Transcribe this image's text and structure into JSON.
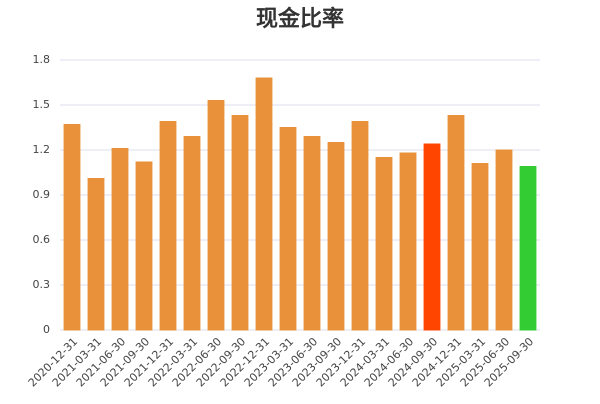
{
  "chart_data": {
    "type": "bar",
    "title": "现金比率",
    "categories": [
      "2020-12-31",
      "2021-03-31",
      "2021-06-30",
      "2021-09-30",
      "2021-12-31",
      "2022-03-31",
      "2022-06-30",
      "2022-09-30",
      "2022-12-31",
      "2023-03-31",
      "2023-06-30",
      "2023-09-30",
      "2023-12-31",
      "2024-03-31",
      "2024-06-30",
      "2024-09-30",
      "2024-12-31",
      "2025-03-31",
      "2025-06-30",
      "2025-09-30"
    ],
    "values": [
      1.37,
      1.01,
      1.21,
      1.12,
      1.39,
      1.29,
      1.53,
      1.43,
      1.68,
      1.35,
      1.29,
      1.25,
      1.39,
      1.15,
      1.18,
      1.24,
      1.43,
      1.11,
      1.2,
      1.09
    ],
    "colors": [
      "#e8913a",
      "#e8913a",
      "#e8913a",
      "#e8913a",
      "#e8913a",
      "#e8913a",
      "#e8913a",
      "#e8913a",
      "#e8913a",
      "#e8913a",
      "#e8913a",
      "#e8913a",
      "#e8913a",
      "#e8913a",
      "#e8913a",
      "#ff4500",
      "#e8913a",
      "#e8913a",
      "#e8913a",
      "#33cc33"
    ],
    "ylim": [
      0,
      1.8
    ],
    "yticks": [
      0,
      0.3,
      0.6,
      0.9,
      1.2,
      1.5,
      1.8
    ],
    "grid": true
  }
}
